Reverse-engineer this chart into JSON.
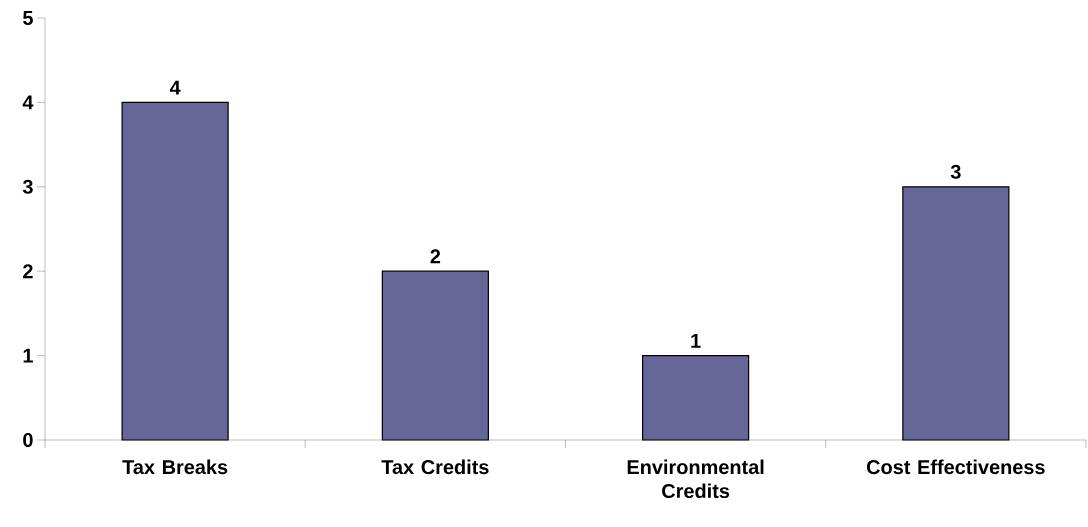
{
  "chart_data": {
    "type": "bar",
    "categories": [
      "Tax Breaks",
      "Tax Credits",
      "Environmental Credits",
      "Cost Effectiveness"
    ],
    "values": [
      4,
      2,
      1,
      3
    ],
    "color": "#666699",
    "ylim": [
      0,
      5
    ],
    "yticks": [
      0,
      1,
      2,
      3,
      4,
      5
    ],
    "data_labels": true
  }
}
